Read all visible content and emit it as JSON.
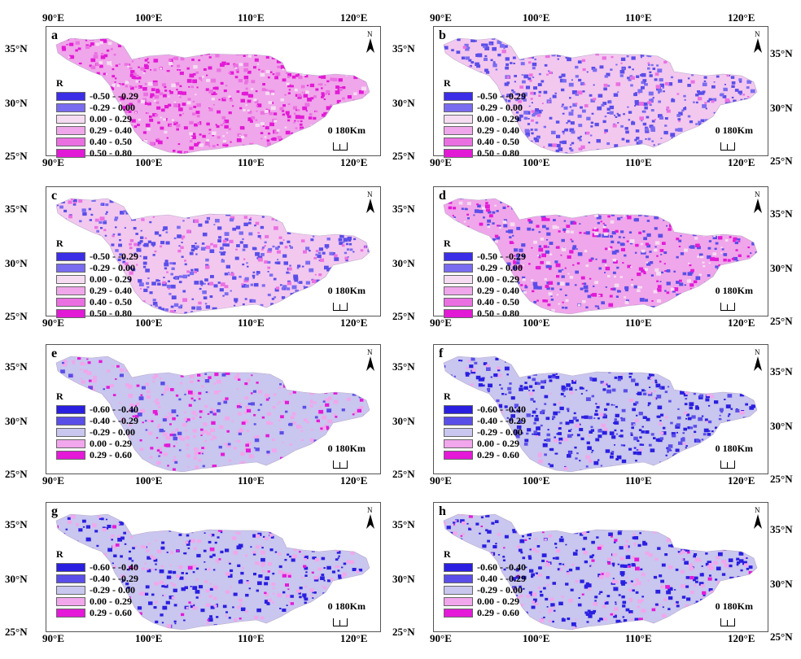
{
  "lon_labels": [
    "90°E",
    "100°E",
    "110°E",
    "120°E"
  ],
  "lat_labels": [
    "35°N",
    "30°N",
    "25°N"
  ],
  "north_label": "N",
  "scale_text": "0 180Km",
  "legend_title": "R",
  "legend_set_a": {
    "labels": [
      "-0.50 - -0.29",
      "-0.29 - 0.00",
      "0.00 - 0.29",
      "0.29 - 0.40",
      "0.40 - 0.50",
      "0.50 - 0.80"
    ],
    "colors": [
      "#3b2ee6",
      "#7a6cf0",
      "#f5dcf2",
      "#efa6ea",
      "#ea70e2",
      "#e21ad6"
    ]
  },
  "legend_set_b": {
    "labels": [
      "-0.60 - -0.40",
      "-0.40 - -0.29",
      "-0.29 - 0.00",
      "0.00 - 0.29",
      "0.29 - 0.60"
    ],
    "colors": [
      "#2a1fe0",
      "#5a4ee8",
      "#c9c6ef",
      "#f2a6ec",
      "#e41ad8"
    ]
  },
  "panels": [
    {
      "label": "a",
      "legend": "legend_set_a",
      "base": "#f0a6ea",
      "patches": [
        [
          "#e21ad6",
          0.55
        ],
        [
          "#ea70e2",
          0.25
        ],
        [
          "#f5dcf2",
          0.15
        ]
      ]
    },
    {
      "label": "b",
      "legend": "legend_set_a",
      "base": "#f3c8ef",
      "patches": [
        [
          "#5a4ee8",
          0.45
        ],
        [
          "#7a6cf0",
          0.25
        ],
        [
          "#ea70e2",
          0.1
        ]
      ]
    },
    {
      "label": "c",
      "legend": "legend_set_a",
      "base": "#f3c8ef",
      "patches": [
        [
          "#5a4ee8",
          0.45
        ],
        [
          "#ea70e2",
          0.15
        ],
        [
          "#7a6cf0",
          0.2
        ]
      ]
    },
    {
      "label": "d",
      "legend": "legend_set_a",
      "base": "#f0a6ea",
      "patches": [
        [
          "#5a4ee8",
          0.4
        ],
        [
          "#e21ad6",
          0.25
        ],
        [
          "#f5dcf2",
          0.15
        ]
      ]
    },
    {
      "label": "e",
      "legend": "legend_set_b",
      "base": "#c9c6ef",
      "patches": [
        [
          "#f2a6ec",
          0.35
        ],
        [
          "#e41ad8",
          0.15
        ],
        [
          "#5a4ee8",
          0.12
        ]
      ]
    },
    {
      "label": "f",
      "legend": "legend_set_b",
      "base": "#c9c6ef",
      "patches": [
        [
          "#2a1fe0",
          0.45
        ],
        [
          "#5a4ee8",
          0.2
        ],
        [
          "#f2a6ec",
          0.1
        ]
      ]
    },
    {
      "label": "g",
      "legend": "legend_set_b",
      "base": "#c9c6ef",
      "patches": [
        [
          "#2a1fe0",
          0.4
        ],
        [
          "#f2a6ec",
          0.25
        ],
        [
          "#e41ad8",
          0.05
        ]
      ]
    },
    {
      "label": "h",
      "legend": "legend_set_b",
      "base": "#c9c6ef",
      "patches": [
        [
          "#2a1fe0",
          0.45
        ],
        [
          "#f2a6ec",
          0.25
        ],
        [
          "#e41ad8",
          0.05
        ]
      ]
    }
  ]
}
